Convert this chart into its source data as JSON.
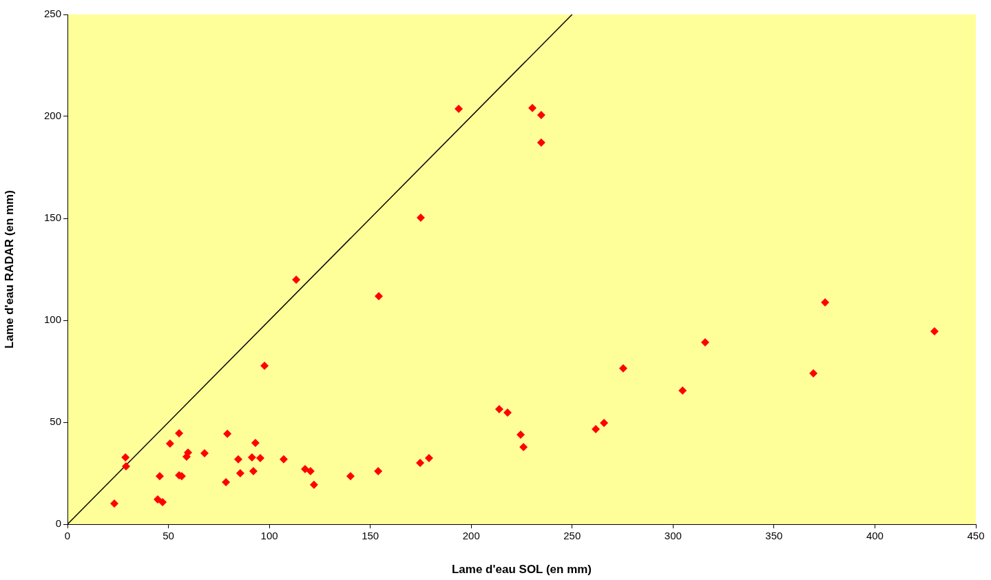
{
  "chart_data": {
    "type": "scatter",
    "xlabel": "Lame d'eau SOL (en mm)",
    "ylabel": "Lame d'eau RADAR (en mm)",
    "xlim": [
      0,
      450
    ],
    "xticks": [
      0,
      50,
      100,
      150,
      200,
      250,
      300,
      350,
      400,
      450
    ],
    "ylim": [
      0,
      250
    ],
    "yticks": [
      0,
      50,
      100,
      150,
      200,
      250
    ],
    "grid": false,
    "legend": false,
    "marker": "diamond",
    "series": [
      {
        "color": "#ff0000",
        "x": [
          23.2,
          28.7,
          29.0,
          45.7,
          44.7,
          47.1,
          50.8,
          55.3,
          55.3,
          56.6,
          59.0,
          59.7,
          67.9,
          78.5,
          79.2,
          84.6,
          85.6,
          91.4,
          92.1,
          93.1,
          95.5,
          97.6,
          107.1,
          113.3,
          117.7,
          120.4,
          122.1,
          140.2,
          153.9,
          154.2,
          174.7,
          175.0,
          179.1,
          193.8,
          213.9,
          218.0,
          224.5,
          225.9,
          230.3,
          234.7,
          234.7,
          261.7,
          265.8,
          275.3,
          304.7,
          315.9,
          369.5,
          375.3,
          429.5
        ],
        "values": [
          10.1,
          32.8,
          28.4,
          23.6,
          12.2,
          10.8,
          39.5,
          44.6,
          24.0,
          23.6,
          33.1,
          35.1,
          34.8,
          20.6,
          44.3,
          31.8,
          25.0,
          32.8,
          26.0,
          39.9,
          32.4,
          77.7,
          31.8,
          119.9,
          27.0,
          26.0,
          19.3,
          23.6,
          26.0,
          111.8,
          30.1,
          150.3,
          32.4,
          203.7,
          56.4,
          54.7,
          43.9,
          37.8,
          204.1,
          200.7,
          187.2,
          46.6,
          49.7,
          76.4,
          65.5,
          89.2,
          74.0,
          108.8,
          94.6
        ]
      },
      {
        "type": "line",
        "color": "#000000",
        "x": [
          0,
          250
        ],
        "values": [
          0,
          250
        ],
        "marker": "none",
        "line_style": "solid"
      }
    ]
  }
}
